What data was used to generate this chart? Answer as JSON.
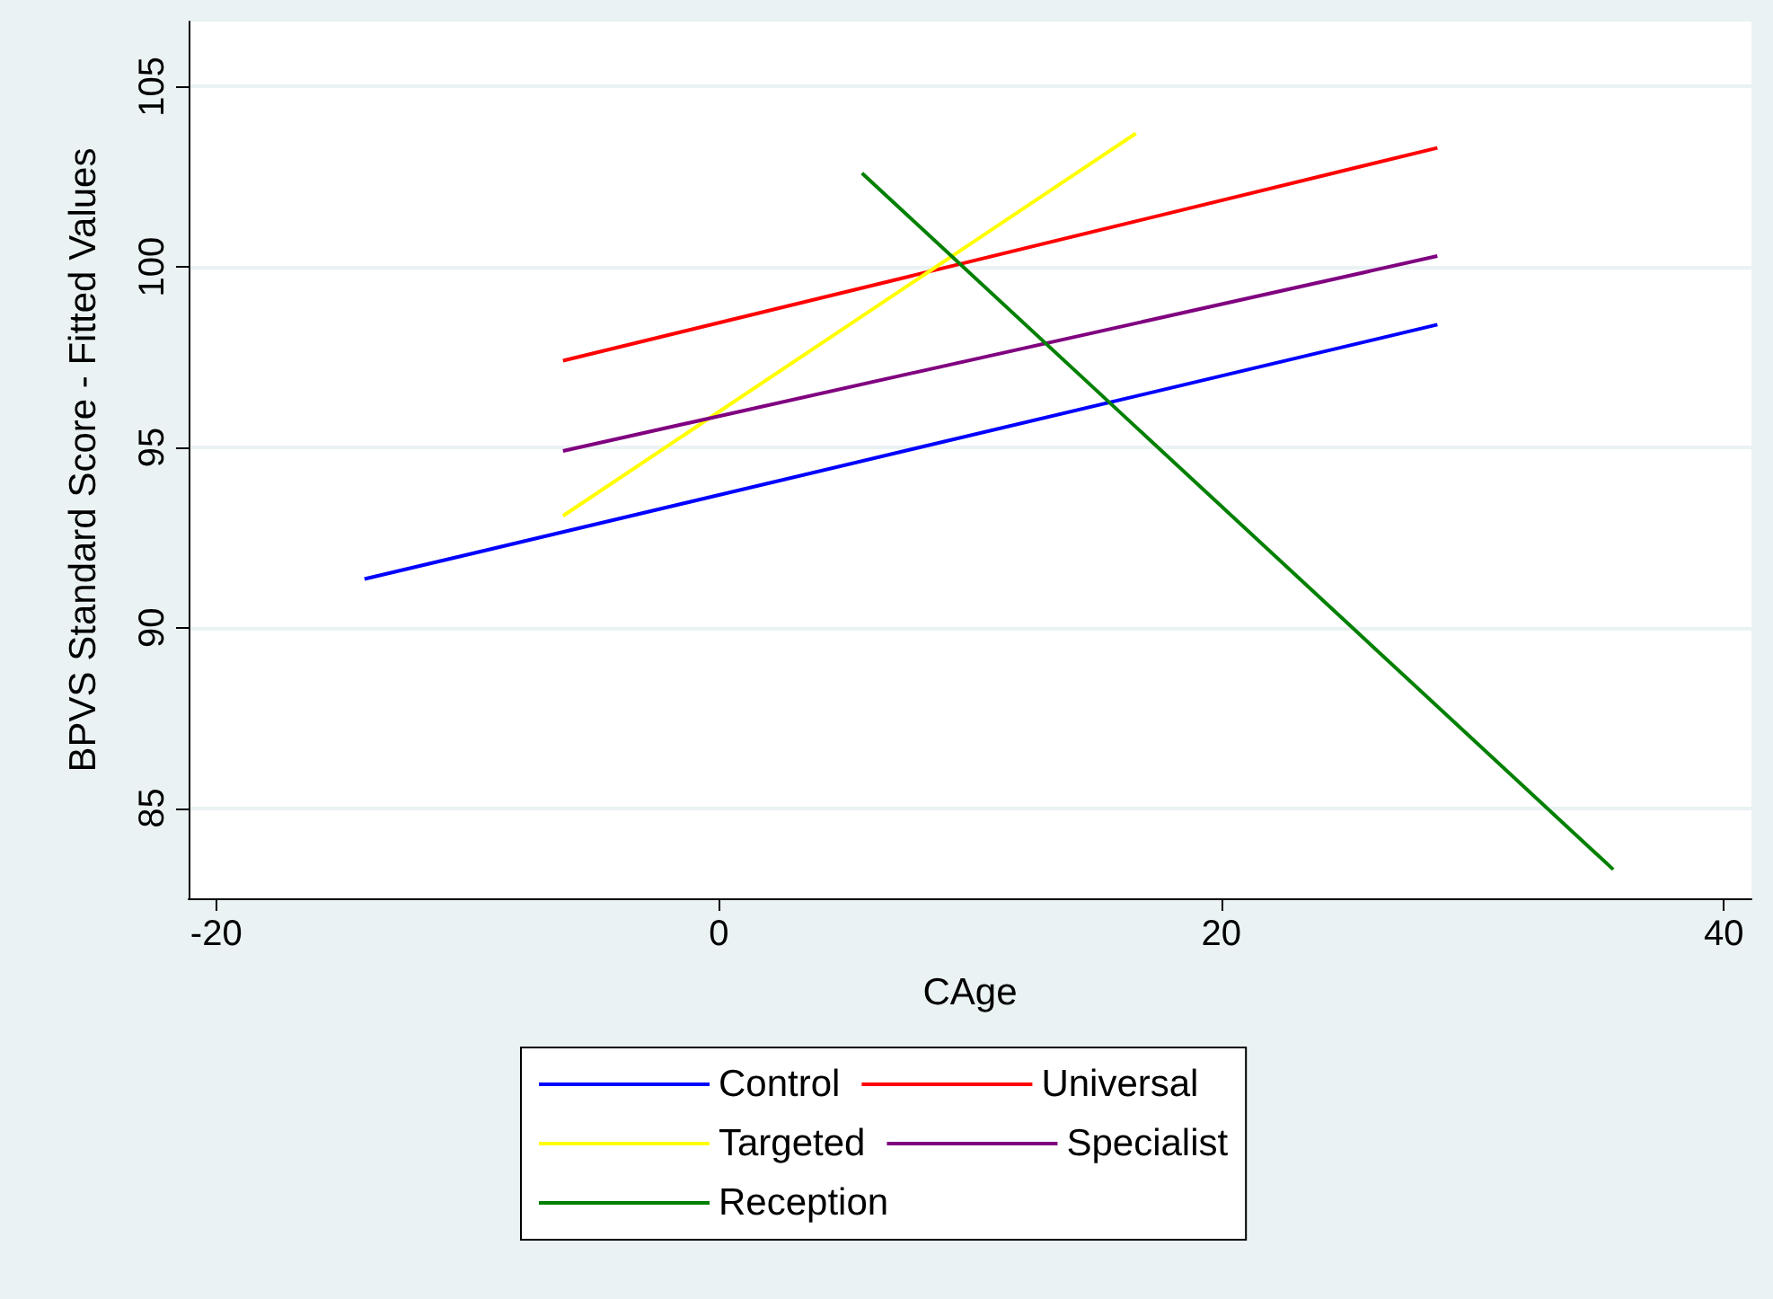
{
  "chart_data": {
    "type": "line",
    "xlabel": "CAge",
    "ylabel": "BPVS Standard Score - Fitted Values",
    "xlim": [
      -21.1,
      41.1
    ],
    "xticks": [
      -20,
      0,
      20,
      40
    ],
    "ylim": [
      82.5,
      106.8
    ],
    "yticks": [
      85,
      90,
      95,
      100,
      105
    ],
    "grid": "y",
    "legend": "bottom",
    "marker": "none",
    "series": [
      {
        "name": "Control",
        "color": "#0000ff",
        "x": [
          -14.1,
          28.6
        ],
        "values": [
          91.35,
          98.4
        ]
      },
      {
        "name": "Universal",
        "color": "#ff0000",
        "x": [
          -6.2,
          28.6
        ],
        "values": [
          97.4,
          103.3
        ]
      },
      {
        "name": "Targeted",
        "color": "#ffff00",
        "x": [
          -6.2,
          16.6
        ],
        "values": [
          93.1,
          103.7
        ]
      },
      {
        "name": "Specialist",
        "color": "#800080",
        "x": [
          -6.2,
          28.6
        ],
        "values": [
          94.9,
          100.3
        ]
      },
      {
        "name": "Reception",
        "color": "#008000",
        "x": [
          5.7,
          35.6
        ],
        "values": [
          102.6,
          83.3
        ]
      }
    ]
  }
}
